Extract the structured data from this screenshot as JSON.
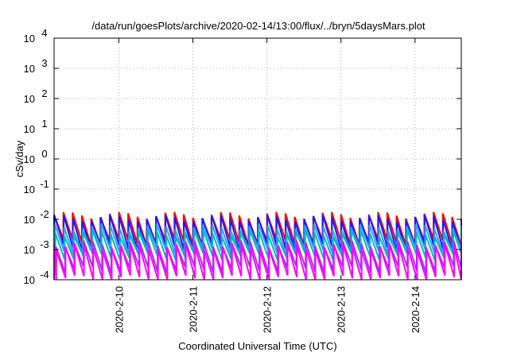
{
  "chart_data": {
    "type": "line",
    "title": "/data/run/goesPlots/archive/2020-02-14/13:00/flux/../bryn/5daysMars.plot",
    "xlabel": "Coordinated Universal Time (UTC)",
    "ylabel": "cSv/day",
    "yscale": "log",
    "ylim": [
      0.0001,
      10000
    ],
    "xlim": [
      "2020-02-09 03:00",
      "2020-02-14 15:00"
    ],
    "grid": true,
    "y_ticks": [
      {
        "value": 0.0001,
        "base": "10",
        "exp": "-4"
      },
      {
        "value": 0.001,
        "base": "10",
        "exp": "-3"
      },
      {
        "value": 0.01,
        "base": "10",
        "exp": "-2"
      },
      {
        "value": 0.1,
        "base": "10",
        "exp": "-1"
      },
      {
        "value": 1,
        "base": "10",
        "exp": "0"
      },
      {
        "value": 10,
        "base": "10",
        "exp": "1"
      },
      {
        "value": 100,
        "base": "10",
        "exp": "2"
      },
      {
        "value": 1000,
        "base": "10",
        "exp": "3"
      },
      {
        "value": 10000,
        "base": "10",
        "exp": "4"
      }
    ],
    "x_ticks": [
      {
        "label": "2020-2-10",
        "value": "2020-02-10 00:00"
      },
      {
        "label": "2020-2-11",
        "value": "2020-02-11 00:00"
      },
      {
        "label": "2020-2-12",
        "value": "2020-02-12 00:00"
      },
      {
        "label": "2020-2-13",
        "value": "2020-02-13 00:00"
      },
      {
        "label": "2020-2-14",
        "value": "2020-02-14 00:00"
      }
    ],
    "sawtooth_period_hours": 3,
    "series": [
      {
        "color": "#ff0000",
        "peak": 0.014,
        "trough": 0.0018,
        "phase_hours": 0.0
      },
      {
        "color": "#1a1aff",
        "peak": 0.011,
        "trough": 0.0012,
        "phase_hours": 0.1
      },
      {
        "color": "#3399ff",
        "peak": 0.0055,
        "trough": 0.0009,
        "phase_hours": 0.25
      },
      {
        "color": "#00bbbb",
        "peak": 0.0035,
        "trough": 0.0006,
        "phase_hours": 0.4
      },
      {
        "color": "#9933ff",
        "peak": 0.0016,
        "trough": 0.00022,
        "phase_hours": 0.55
      },
      {
        "color": "#ff00ff",
        "peak": 0.0012,
        "trough": 0.00011,
        "phase_hours": 0.7
      }
    ]
  }
}
